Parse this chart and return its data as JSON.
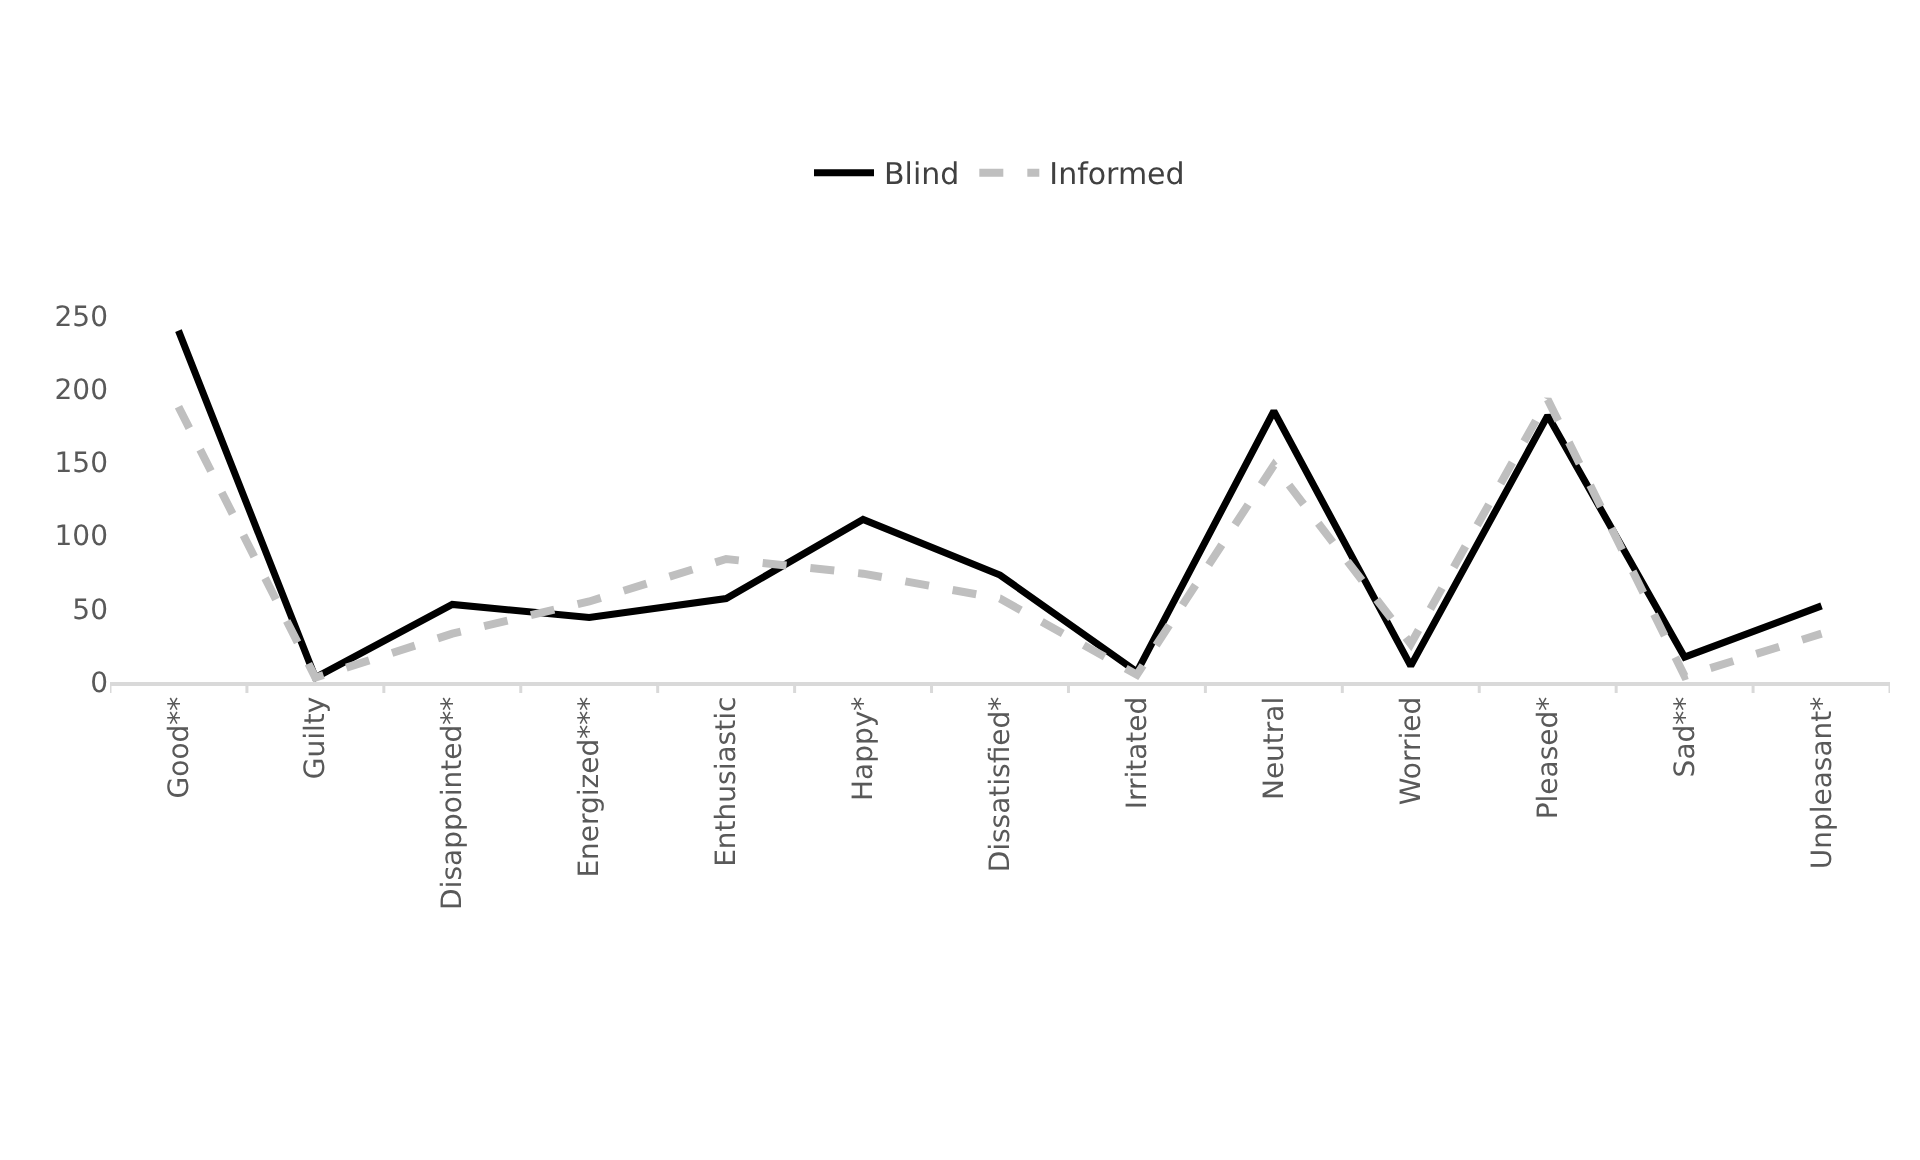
{
  "chart_data": {
    "type": "line",
    "categories": [
      "Good**",
      "Guilty",
      "Disappointed**",
      "Energized***",
      "Enthusiastic",
      "Happy*",
      "Dissatisfied*",
      "Irritated",
      "Neutral",
      "Worried",
      "Pleased*",
      "Sad**",
      "Unpleasant*"
    ],
    "series": [
      {
        "name": "Blind",
        "color": "#000000",
        "line_style": "solid",
        "values": [
          240,
          3,
          53,
          44,
          57,
          111,
          73,
          7,
          185,
          11,
          182,
          17,
          52
        ]
      },
      {
        "name": "Informed",
        "color": "#bfbfbf",
        "line_style": "dashed",
        "values": [
          188,
          3,
          33,
          55,
          84,
          74,
          57,
          5,
          148,
          26,
          193,
          4,
          33
        ]
      }
    ],
    "ylim": [
      0,
      250
    ],
    "yticks": [
      0,
      50,
      100,
      150,
      200,
      250
    ],
    "grid": false,
    "legend": "top",
    "marker": "none"
  }
}
